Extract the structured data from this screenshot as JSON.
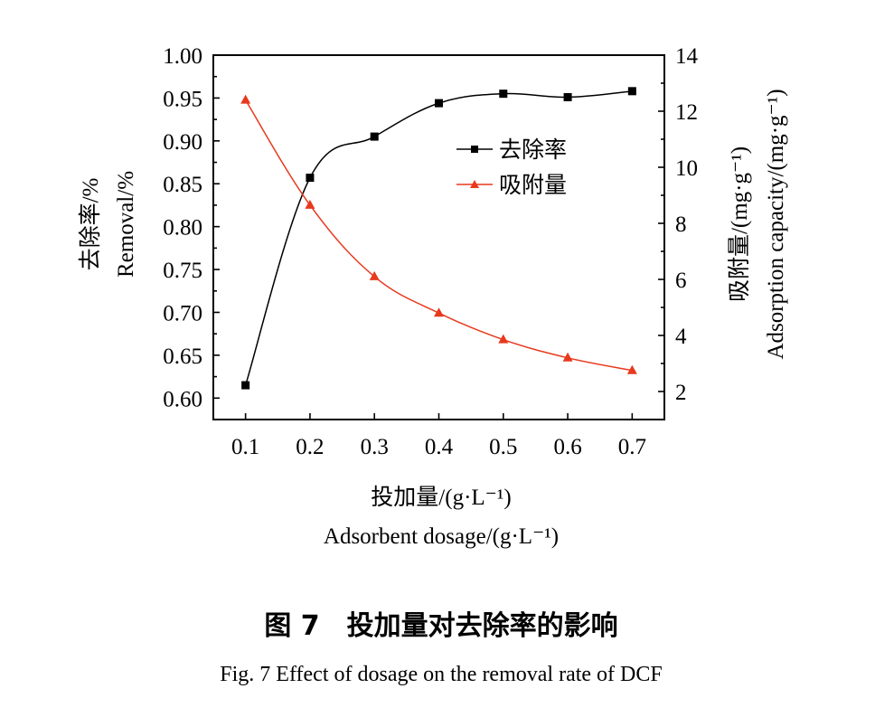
{
  "chart_data": {
    "type": "line",
    "x": [
      0.1,
      0.2,
      0.3,
      0.4,
      0.5,
      0.6,
      0.7
    ],
    "xlim": [
      0.05,
      0.75
    ],
    "x_ticks": [
      "0.1",
      "0.2",
      "0.3",
      "0.4",
      "0.5",
      "0.6",
      "0.7"
    ],
    "xlabel_cn": "投加量/(g·L⁻¹)",
    "xlabel_en": "Adsorbent dosage/(g·L⁻¹)",
    "y_left": {
      "label_cn": "去除率/%",
      "label_en": "Removal/%",
      "lim": [
        0.575,
        1.0
      ],
      "ticks": [
        "0.60",
        "0.65",
        "0.70",
        "0.75",
        "0.80",
        "0.85",
        "0.90",
        "0.95",
        "1.00"
      ]
    },
    "y_right": {
      "label_cn": "吸附量/(mg·g⁻¹)",
      "label_en": "Adsorption capacity/(mg·g⁻¹)",
      "lim": [
        1,
        14
      ],
      "ticks": [
        "2",
        "4",
        "6",
        "8",
        "10",
        "12",
        "14"
      ]
    },
    "series": [
      {
        "name": "去除率",
        "axis": "left",
        "marker": "square",
        "color": "#000000",
        "values": [
          0.615,
          0.857,
          0.905,
          0.944,
          0.955,
          0.951,
          0.958
        ]
      },
      {
        "name": "吸附量",
        "axis": "right",
        "marker": "triangle",
        "color": "#e8391d",
        "values": [
          12.4,
          8.65,
          6.1,
          4.8,
          3.85,
          3.2,
          2.75
        ]
      }
    ],
    "legend_position": "upper-right",
    "grid": false
  },
  "caption": {
    "cn": "图 7　投加量对去除率的影响",
    "en": "Fig. 7 Effect of dosage on the removal rate of DCF"
  }
}
